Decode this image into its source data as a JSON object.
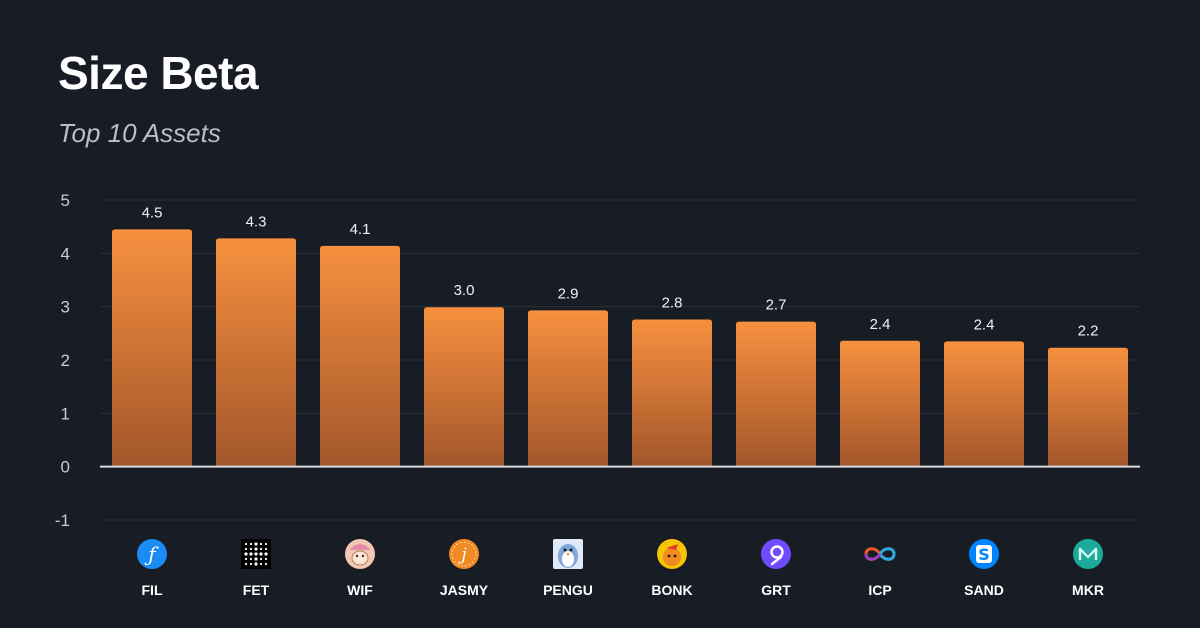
{
  "header": {
    "title": "Size Beta",
    "subtitle": "Top 10 Assets"
  },
  "colors": {
    "background": "#181c25",
    "bar_top": "#f7903f",
    "bar_bottom": "#a2562b",
    "grid": "#2a2f3a",
    "zero_line": "#d9dce3"
  },
  "chart_data": {
    "type": "bar",
    "title": "Size Beta",
    "subtitle": "Top 10 Assets",
    "xlabel": "",
    "ylabel": "",
    "ylim": [
      -1,
      5
    ],
    "yticks": [
      5,
      4,
      3,
      2,
      1,
      0,
      -1
    ],
    "grid": true,
    "categories": [
      "FIL",
      "FET",
      "WIF",
      "JASMY",
      "PENGU",
      "BONK",
      "GRT",
      "ICP",
      "SAND",
      "MKR"
    ],
    "values": [
      4.5,
      4.3,
      4.1,
      3.0,
      2.9,
      2.8,
      2.7,
      2.4,
      2.4,
      2.2
    ],
    "value_labels": [
      "4.5",
      "4.3",
      "4.1",
      "3.0",
      "2.9",
      "2.8",
      "2.7",
      "2.4",
      "2.4",
      "2.2"
    ],
    "bar_heights": [
      4.45,
      4.28,
      4.14,
      2.99,
      2.93,
      2.76,
      2.72,
      2.36,
      2.35,
      2.23
    ],
    "icons": [
      {
        "name": "filecoin-icon",
        "color": "#1a8cf5",
        "glyph": "ƒ"
      },
      {
        "name": "fetch-ai-icon",
        "color": "#000000",
        "glyph": "dots"
      },
      {
        "name": "dogwifhat-icon",
        "color": "#e8b8a0",
        "glyph": "dog"
      },
      {
        "name": "jasmy-icon",
        "color": "#f08a24",
        "glyph": "j"
      },
      {
        "name": "pudgy-penguins-icon",
        "color": "#dfe9f7",
        "glyph": "penguin"
      },
      {
        "name": "bonk-icon",
        "color": "#f6c400",
        "glyph": "bonk"
      },
      {
        "name": "the-graph-icon",
        "color": "#6f4cff",
        "glyph": "graph"
      },
      {
        "name": "internet-computer-icon",
        "color": "#29abe2",
        "glyph": "infinity"
      },
      {
        "name": "sandbox-icon",
        "color": "#0084ff",
        "glyph": "S"
      },
      {
        "name": "maker-icon",
        "color": "#1aab9b",
        "glyph": "M"
      }
    ]
  }
}
